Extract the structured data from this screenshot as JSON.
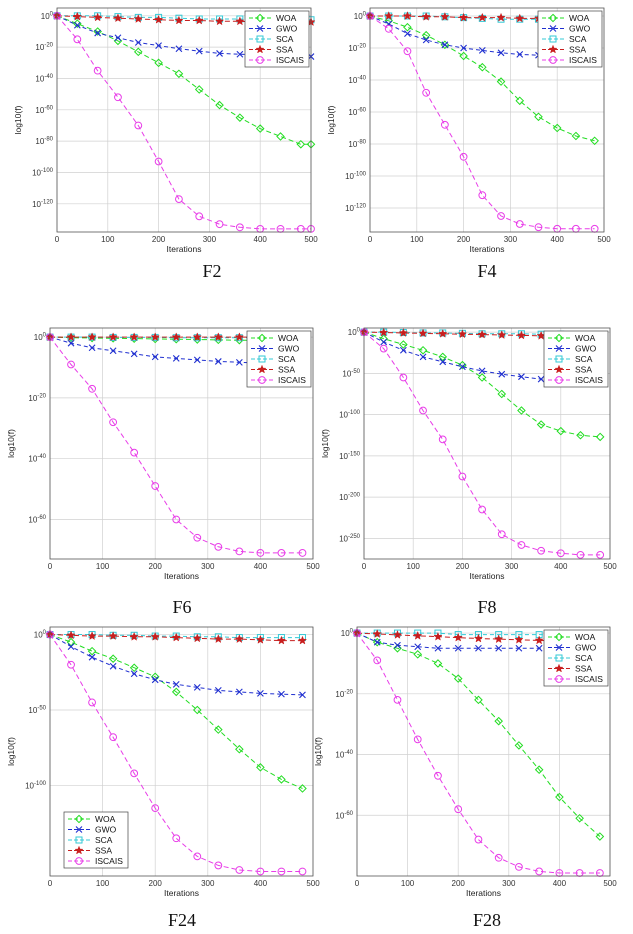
{
  "figure": {
    "panels_label": "Convergence curves",
    "xlabel": "Iterations",
    "ylabel": "log10(f)"
  },
  "colors": {
    "WOA": "#22dd22",
    "GWO": "#1f2fd0",
    "SCA": "#33c9d6",
    "SSA": "#c81e1e",
    "ISCAIS": "#e83de8",
    "grid": "#d0d0d0"
  },
  "icons": {
    "WOA": "diamond-icon",
    "GWO": "x-icon",
    "SCA": "square-icon",
    "SSA": "star-icon",
    "ISCAIS": "circle-icon"
  },
  "chart_data": [
    {
      "type": "line",
      "caption": "F2",
      "xlabel": "Iterations",
      "ylabel": "log10(f)",
      "xlim": [
        0,
        500
      ],
      "xticks": [
        0,
        100,
        200,
        300,
        400,
        500
      ],
      "ylim": [
        -138,
        5
      ],
      "yticks": [
        0,
        -20,
        -40,
        -60,
        -80,
        -100,
        -120
      ],
      "yexp": true,
      "legend": "top-right",
      "grid": true,
      "x": [
        0,
        40,
        80,
        120,
        160,
        200,
        240,
        280,
        320,
        360,
        400,
        440,
        480,
        500
      ],
      "series": [
        {
          "name": "WOA",
          "values": [
            0,
            -5,
            -10,
            -16,
            -23,
            -30,
            -37,
            -47,
            -57,
            -65,
            -72,
            -77,
            -82,
            -82
          ]
        },
        {
          "name": "GWO",
          "values": [
            0,
            -6,
            -11,
            -14,
            -17,
            -19,
            -21,
            -22.5,
            -24,
            -24.5,
            -25,
            -25.5,
            -26,
            -26
          ]
        },
        {
          "name": "SCA",
          "values": [
            0,
            0,
            0,
            -0.5,
            -1,
            -1,
            -1.5,
            -2,
            -2,
            -2,
            -2.5,
            -2.5,
            -2.5,
            -2.5
          ]
        },
        {
          "name": "SSA",
          "values": [
            0,
            -0.5,
            -1,
            -1.5,
            -2,
            -2.5,
            -3,
            -3,
            -3.5,
            -3.5,
            -4,
            -4,
            -4,
            -4
          ]
        },
        {
          "name": "ISCAIS",
          "values": [
            0,
            -15,
            -35,
            -52,
            -70,
            -93,
            -117,
            -128,
            -133,
            -135,
            -136,
            -136,
            -136,
            -136
          ]
        }
      ]
    },
    {
      "type": "line",
      "caption": "F4",
      "xlabel": "Iterations",
      "ylabel": "log10(f)",
      "xlim": [
        0,
        500
      ],
      "xticks": [
        0,
        100,
        200,
        300,
        400,
        500
      ],
      "ylim": [
        -135,
        5
      ],
      "yticks": [
        0,
        -20,
        -40,
        -60,
        -80,
        -100,
        -120
      ],
      "yexp": true,
      "legend": "top-right",
      "grid": true,
      "x": [
        0,
        40,
        80,
        120,
        160,
        200,
        240,
        280,
        320,
        360,
        400,
        440,
        480
      ],
      "series": [
        {
          "name": "WOA",
          "values": [
            0,
            -3,
            -7,
            -12,
            -18,
            -25,
            -32,
            -41,
            -53,
            -63,
            -70,
            -75,
            -78
          ]
        },
        {
          "name": "GWO",
          "values": [
            0,
            -5,
            -11,
            -15,
            -18,
            -20,
            -21.5,
            -23,
            -24,
            -24.5,
            -25,
            -25.5,
            -26
          ]
        },
        {
          "name": "SCA",
          "values": [
            0,
            0,
            0,
            0,
            -0.5,
            -1,
            -1.5,
            -2,
            -2,
            -2,
            -2,
            -2,
            -2
          ]
        },
        {
          "name": "SSA",
          "values": [
            0,
            0,
            0,
            -0.5,
            -0.5,
            -1,
            -1,
            -1,
            -1.5,
            -1.5,
            -2,
            -2,
            -2
          ]
        },
        {
          "name": "ISCAIS",
          "values": [
            0,
            -8,
            -22,
            -48,
            -68,
            -88,
            -112,
            -125,
            -130,
            -132,
            -133,
            -133,
            -133
          ]
        }
      ]
    },
    {
      "type": "line",
      "caption": "F6",
      "xlabel": "Iterations",
      "ylabel": "log10(f)",
      "xlim": [
        0,
        500
      ],
      "xticks": [
        0,
        100,
        200,
        300,
        400,
        500
      ],
      "ylim": [
        -73,
        3
      ],
      "yticks": [
        0,
        -20,
        -40,
        -60
      ],
      "yexp": true,
      "legend": "top-right",
      "grid": true,
      "x": [
        0,
        40,
        80,
        120,
        160,
        200,
        240,
        280,
        320,
        360,
        400,
        440,
        480
      ],
      "series": [
        {
          "name": "WOA",
          "values": [
            0,
            -0.2,
            -0.3,
            -0.4,
            -0.5,
            -0.6,
            -0.7,
            -0.8,
            -0.9,
            -1,
            -1,
            -1,
            -1
          ]
        },
        {
          "name": "GWO",
          "values": [
            0,
            -2,
            -3.5,
            -4.5,
            -5.5,
            -6.5,
            -7,
            -7.5,
            -8,
            -8.3,
            -8.5,
            -8.7,
            -9
          ]
        },
        {
          "name": "SCA",
          "values": [
            0,
            0,
            0,
            -0.1,
            -0.1,
            -0.1,
            -0.2,
            -0.2,
            -0.2,
            -0.2,
            -0.2,
            -0.2,
            -0.2
          ]
        },
        {
          "name": "SSA",
          "values": [
            0,
            0,
            0,
            0,
            0,
            0,
            0,
            0,
            0,
            0,
            0,
            0,
            0
          ]
        },
        {
          "name": "ISCAIS",
          "values": [
            0,
            -9,
            -17,
            -28,
            -38,
            -49,
            -60,
            -66,
            -69,
            -70.5,
            -71,
            -71,
            -71
          ]
        }
      ]
    },
    {
      "type": "line",
      "caption": "F8",
      "xlabel": "Iterations",
      "ylabel": "log10(f)",
      "xlim": [
        0,
        500
      ],
      "xticks": [
        0,
        100,
        200,
        300,
        400,
        500
      ],
      "ylim": [
        -275,
        5
      ],
      "yticks": [
        0,
        -50,
        -100,
        -150,
        -200,
        -250
      ],
      "yexp": true,
      "legend": "top-right",
      "grid": true,
      "x": [
        0,
        40,
        80,
        120,
        160,
        200,
        240,
        280,
        320,
        360,
        400,
        440,
        480
      ],
      "series": [
        {
          "name": "WOA",
          "values": [
            0,
            -8,
            -15,
            -22,
            -30,
            -40,
            -55,
            -75,
            -95,
            -112,
            -120,
            -125,
            -127
          ]
        },
        {
          "name": "GWO",
          "values": [
            0,
            -12,
            -22,
            -30,
            -36,
            -42,
            -47,
            -51,
            -54,
            -57,
            -59,
            -60,
            -61
          ]
        },
        {
          "name": "SCA",
          "values": [
            0,
            0,
            -0.5,
            -1,
            -1,
            -1.5,
            -2,
            -2,
            -2,
            -2.5,
            -2.5,
            -3,
            -3
          ]
        },
        {
          "name": "SSA",
          "values": [
            0,
            -0.5,
            -1,
            -1.5,
            -2,
            -2.5,
            -3,
            -3.5,
            -4,
            -4.5,
            -5,
            -5,
            -5
          ]
        },
        {
          "name": "ISCAIS",
          "values": [
            0,
            -20,
            -55,
            -95,
            -130,
            -175,
            -215,
            -245,
            -258,
            -265,
            -268,
            -270,
            -270
          ]
        }
      ]
    },
    {
      "type": "line",
      "caption": "F24",
      "xlabel": "Iterations",
      "ylabel": "log10(f)",
      "xlim": [
        0,
        500
      ],
      "xticks": [
        0,
        100,
        200,
        300,
        400,
        500
      ],
      "ylim": [
        -160,
        5
      ],
      "yticks": [
        0,
        -50,
        -100
      ],
      "yexp": true,
      "legend": "bottom-left",
      "grid": true,
      "x": [
        0,
        40,
        80,
        120,
        160,
        200,
        240,
        280,
        320,
        360,
        400,
        440,
        480
      ],
      "series": [
        {
          "name": "WOA",
          "values": [
            0,
            -5,
            -11,
            -16,
            -22,
            -28,
            -38,
            -50,
            -63,
            -76,
            -88,
            -96,
            -102
          ]
        },
        {
          "name": "GWO",
          "values": [
            0,
            -8,
            -15,
            -21,
            -26,
            -30,
            -33,
            -35,
            -37,
            -38,
            -39,
            -39.5,
            -40
          ]
        },
        {
          "name": "SCA",
          "values": [
            0,
            0,
            0,
            -0.5,
            -0.5,
            -1,
            -1,
            -1.5,
            -1.5,
            -2,
            -2,
            -2,
            -2
          ]
        },
        {
          "name": "SSA",
          "values": [
            0,
            -0.5,
            -1,
            -1,
            -1.5,
            -1.5,
            -2,
            -2.5,
            -3,
            -3,
            -3.5,
            -4,
            -4
          ]
        },
        {
          "name": "ISCAIS",
          "values": [
            0,
            -20,
            -45,
            -68,
            -92,
            -115,
            -135,
            -147,
            -153,
            -156,
            -157,
            -157,
            -157
          ]
        }
      ]
    },
    {
      "type": "line",
      "caption": "F28",
      "xlabel": "Iterations",
      "ylabel": "log10(f)",
      "xlim": [
        0,
        500
      ],
      "xticks": [
        0,
        100,
        200,
        300,
        400,
        500
      ],
      "ylim": [
        -80,
        2
      ],
      "yticks": [
        0,
        -20,
        -40,
        -60
      ],
      "yexp": true,
      "legend": "top-right",
      "grid": true,
      "x": [
        0,
        40,
        80,
        120,
        160,
        200,
        240,
        280,
        320,
        360,
        400,
        440,
        480
      ],
      "series": [
        {
          "name": "WOA",
          "values": [
            0,
            -3,
            -5,
            -7,
            -10,
            -15,
            -22,
            -29,
            -37,
            -45,
            -54,
            -61,
            -67
          ]
        },
        {
          "name": "GWO",
          "values": [
            0,
            -3,
            -4,
            -4.5,
            -5,
            -5,
            -5,
            -5,
            -5,
            -5,
            -5,
            -5,
            -5
          ]
        },
        {
          "name": "SCA",
          "values": [
            0,
            0,
            0,
            0,
            0,
            -0.5,
            -0.5,
            -0.5,
            -0.5,
            -0.5,
            -0.5,
            -0.5,
            -0.5
          ]
        },
        {
          "name": "SSA",
          "values": [
            0,
            -0.3,
            -0.6,
            -0.9,
            -1.2,
            -1.5,
            -1.8,
            -2,
            -2.2,
            -2.4,
            -2.6,
            -2.8,
            -3
          ]
        },
        {
          "name": "ISCAIS",
          "values": [
            0,
            -9,
            -22,
            -35,
            -47,
            -58,
            -68,
            -74,
            -77,
            -78.5,
            -79,
            -79,
            -79
          ]
        }
      ]
    }
  ]
}
